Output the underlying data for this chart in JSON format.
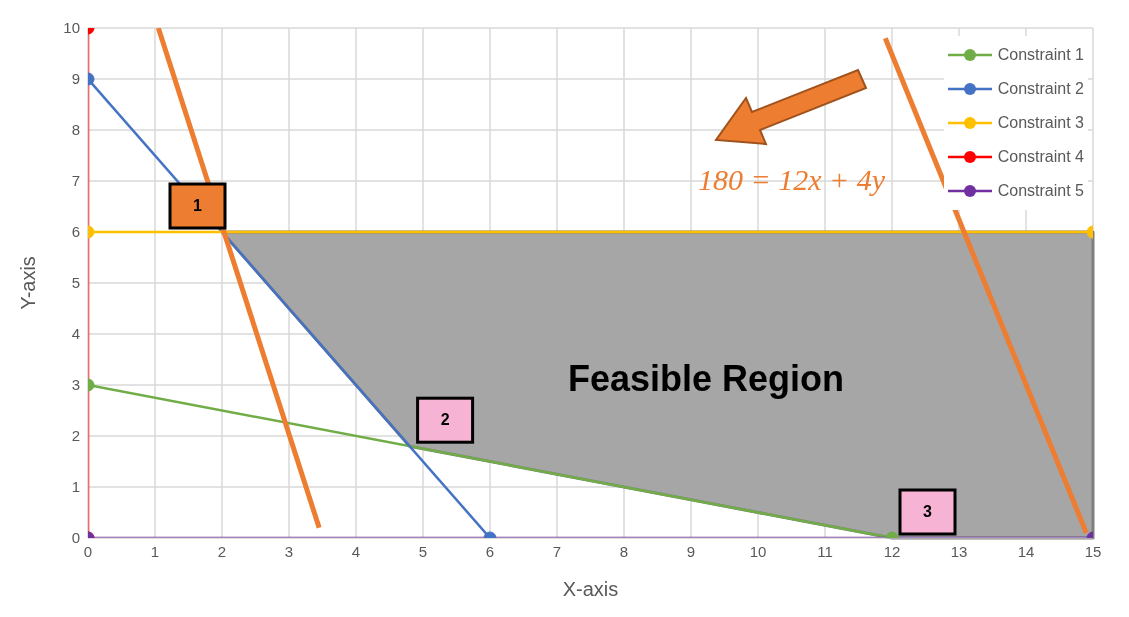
{
  "chart_data": {
    "type": "line",
    "xlabel": "X-axis",
    "ylabel": "Y-axis",
    "xlim": [
      0,
      15
    ],
    "xticks": [
      0,
      1,
      2,
      3,
      4,
      5,
      6,
      7,
      8,
      9,
      10,
      11,
      12,
      13,
      14,
      15
    ],
    "ylim": [
      0,
      10
    ],
    "yticks": [
      0,
      1,
      2,
      3,
      4,
      5,
      6,
      7,
      8,
      9,
      10
    ],
    "grid": true,
    "legend": "top right",
    "series": [
      {
        "type": "area",
        "color": "#a6a6a6",
        "x": [
          2,
          15,
          15,
          12,
          4.8,
          2
        ],
        "values": [
          6,
          6,
          0,
          0,
          1.8,
          6
        ],
        "marker": "none"
      },
      {
        "name": "Constraint 1",
        "color": "#70ad47",
        "x": [
          0,
          12
        ],
        "values": [
          3,
          0
        ],
        "marker": "circle"
      },
      {
        "name": "Constraint 2",
        "color": "#4472c4",
        "x": [
          0,
          6
        ],
        "values": [
          9,
          0
        ],
        "marker": "circle"
      },
      {
        "name": "Constraint 3",
        "color": "#ffc000",
        "x": [
          0,
          15
        ],
        "values": [
          6,
          6
        ],
        "marker": "circle"
      },
      {
        "name": "Constraint 4",
        "color": "#ff0000",
        "x": [
          0,
          0
        ],
        "values": [
          0,
          10
        ],
        "marker": "circle"
      },
      {
        "name": "Constraint 5",
        "color": "#7030a0",
        "x": [
          0,
          15
        ],
        "values": [
          0,
          0
        ],
        "marker": "circle"
      },
      {
        "color": "#ed7d31",
        "x": [
          1.05,
          3.45
        ],
        "values": [
          10,
          0.2
        ],
        "marker": "none"
      },
      {
        "color": "#ed7d31",
        "x": [
          11.9,
          14.9
        ],
        "values": [
          9.8,
          0.1
        ],
        "marker": "none"
      }
    ],
    "annotations": [
      {
        "text": "1",
        "x": 2,
        "y": 6
      },
      {
        "text": "2",
        "x": 4.8,
        "y": 1.8
      },
      {
        "text": "3",
        "x": 12,
        "y": 0
      },
      "Feasible Region",
      "180 = 12x + 4y"
    ]
  }
}
